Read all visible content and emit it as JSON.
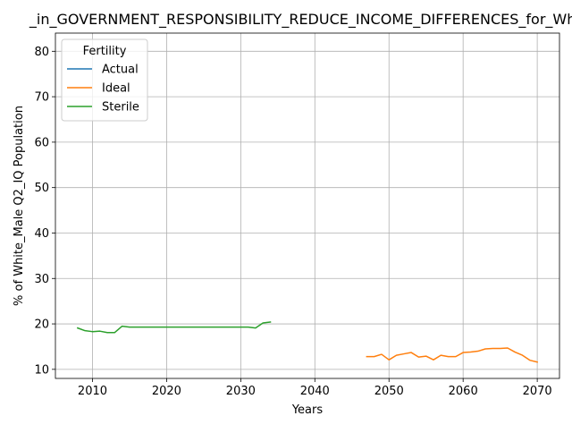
{
  "chart_data": {
    "type": "line",
    "title": "_in_GOVERNMENT_RESPONSIBILITY_REDUCE_INCOME_DIFFERENCES_for_Whit",
    "xlabel": "Years",
    "ylabel": "% of White_Male Q2_IQ Population",
    "xlim": [
      2005,
      2073
    ],
    "ylim": [
      8,
      84
    ],
    "xticks": [
      2010,
      2020,
      2030,
      2040,
      2050,
      2060,
      2070
    ],
    "yticks": [
      10,
      20,
      30,
      40,
      50,
      60,
      70,
      80
    ],
    "grid": true,
    "legend": {
      "title": "Fertility",
      "placement": "upper-left"
    },
    "series": [
      {
        "name": "Actual",
        "color": "#1f77b4",
        "x": [],
        "y": []
      },
      {
        "name": "Ideal",
        "color": "#ff7f0e",
        "x": [
          2047,
          2048,
          2049,
          2050,
          2051,
          2052,
          2053,
          2054,
          2055,
          2056,
          2057,
          2058,
          2059,
          2060,
          2061,
          2062,
          2063,
          2064,
          2065,
          2066,
          2067,
          2068,
          2069,
          2070
        ],
        "y": [
          12.8,
          12.8,
          13.3,
          12.1,
          13.1,
          13.4,
          13.7,
          12.7,
          12.9,
          12.1,
          13.1,
          12.8,
          12.8,
          13.7,
          13.8,
          14.0,
          14.5,
          14.6,
          14.6,
          14.7,
          13.8,
          13.1,
          12.0,
          11.6
        ]
      },
      {
        "name": "Sterile",
        "color": "#2ca02c",
        "x": [
          2008,
          2009,
          2010,
          2011,
          2012,
          2013,
          2014,
          2015,
          2016,
          2017,
          2018,
          2019,
          2020,
          2021,
          2022,
          2023,
          2024,
          2025,
          2026,
          2027,
          2028,
          2029,
          2030,
          2031,
          2032,
          2033,
          2034
        ],
        "y": [
          19.1,
          18.5,
          18.3,
          18.4,
          18.1,
          18.1,
          19.5,
          19.3,
          19.3,
          19.3,
          19.3,
          19.3,
          19.3,
          19.3,
          19.3,
          19.3,
          19.3,
          19.3,
          19.3,
          19.3,
          19.3,
          19.3,
          19.3,
          19.3,
          19.1,
          20.2,
          20.4
        ]
      }
    ]
  }
}
